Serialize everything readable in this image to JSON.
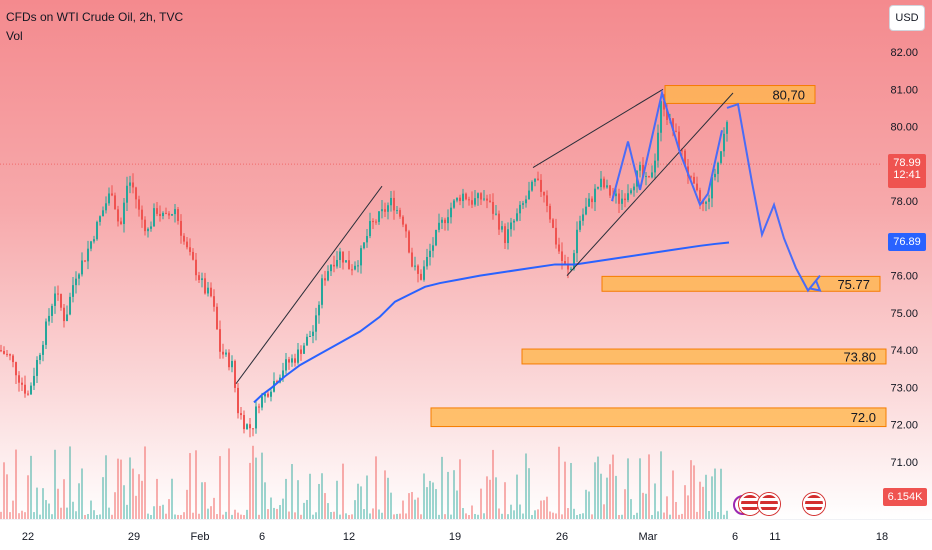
{
  "header": {
    "title": "CFDs on WTI Crude Oil, 2h, TVC",
    "indicator": "Vol",
    "currency_button": "USD"
  },
  "axis": {
    "y_ticks": [
      "82.00",
      "81.00",
      "80.00",
      "79.00",
      "78.00",
      "77.00",
      "76.00",
      "75.00",
      "74.00",
      "73.00",
      "72.00",
      "71.00"
    ],
    "x_ticks": [
      "22",
      "29",
      "Feb",
      "6",
      "12",
      "19",
      "26",
      "Mar",
      "6",
      "11",
      "18"
    ]
  },
  "price_tags": {
    "last_price": "78.99",
    "countdown": "12:41",
    "ma_value": "76.89",
    "volume": "6.154K"
  },
  "zones": [
    {
      "label": "80,70",
      "low": 80.62,
      "high": 81.1
    },
    {
      "label": "75.77",
      "low": 75.58,
      "high": 75.98
    },
    {
      "label": "73.80",
      "low": 73.63,
      "high": 74.03
    },
    {
      "label": "72.0",
      "low": 71.95,
      "high": 72.45
    }
  ],
  "colors": {
    "up": "#26a69a",
    "down": "#ef5350",
    "ma": "#2962ff",
    "projection": "#4a6cf7",
    "zone_fill": "#ffb74d",
    "zone_border": "#f57c00"
  },
  "event_icons": [
    "lightning-icon",
    "us-flag-icon",
    "us-flag-icon",
    "us-flag-icon"
  ],
  "chart_data": {
    "type": "candlestick",
    "title": "CFDs on WTI Crude Oil, 2h, TVC",
    "ylim": [
      70.5,
      82.5
    ],
    "price_path": [
      [
        0,
        74.0
      ],
      [
        10,
        73.8
      ],
      [
        20,
        73.2
      ],
      [
        28,
        72.8
      ],
      [
        35,
        73.5
      ],
      [
        45,
        74.5
      ],
      [
        55,
        75.6
      ],
      [
        65,
        74.8
      ],
      [
        75,
        76.0
      ],
      [
        85,
        76.5
      ],
      [
        95,
        77.2
      ],
      [
        105,
        77.9
      ],
      [
        112,
        78.3
      ],
      [
        120,
        77.2
      ],
      [
        128,
        78.6
      ],
      [
        134,
        78.3
      ],
      [
        140,
        77.6
      ],
      [
        148,
        77.2
      ],
      [
        156,
        77.8
      ],
      [
        165,
        77.5
      ],
      [
        175,
        77.8
      ],
      [
        185,
        76.8
      ],
      [
        195,
        76.2
      ],
      [
        205,
        75.6
      ],
      [
        212,
        75.4
      ],
      [
        220,
        74.0
      ],
      [
        226,
        73.8
      ],
      [
        232,
        73.6
      ],
      [
        238,
        72.4
      ],
      [
        245,
        72.0
      ],
      [
        252,
        71.9
      ],
      [
        258,
        72.6
      ],
      [
        265,
        72.8
      ],
      [
        275,
        73.2
      ],
      [
        285,
        73.6
      ],
      [
        295,
        73.8
      ],
      [
        305,
        74.2
      ],
      [
        315,
        74.6
      ],
      [
        322,
        75.8
      ],
      [
        330,
        76.3
      ],
      [
        340,
        76.6
      ],
      [
        350,
        76.2
      ],
      [
        360,
        76.5
      ],
      [
        370,
        77.3
      ],
      [
        380,
        77.6
      ],
      [
        392,
        78.0
      ],
      [
        405,
        77.4
      ],
      [
        412,
        76.3
      ],
      [
        420,
        75.9
      ],
      [
        428,
        76.5
      ],
      [
        438,
        77.2
      ],
      [
        450,
        77.8
      ],
      [
        462,
        78.2
      ],
      [
        472,
        78.0
      ],
      [
        485,
        78.1
      ],
      [
        496,
        77.6
      ],
      [
        505,
        77.0
      ],
      [
        515,
        77.5
      ],
      [
        525,
        78.0
      ],
      [
        535,
        78.5
      ],
      [
        545,
        78.2
      ],
      [
        555,
        77.0
      ],
      [
        562,
        76.4
      ],
      [
        570,
        76.0
      ],
      [
        578,
        77.4
      ],
      [
        590,
        78.0
      ],
      [
        600,
        78.5
      ],
      [
        610,
        78.2
      ],
      [
        620,
        78.0
      ],
      [
        630,
        78.4
      ],
      [
        640,
        78.8
      ],
      [
        648,
        78.4
      ],
      [
        655,
        79.2
      ],
      [
        662,
        80.8
      ],
      [
        668,
        80.2
      ],
      [
        675,
        79.8
      ],
      [
        685,
        79.0
      ],
      [
        692,
        78.4
      ],
      [
        700,
        78.0
      ],
      [
        705,
        77.8
      ],
      [
        712,
        78.5
      ],
      [
        720,
        79.2
      ],
      [
        727,
        80.2
      ],
      [
        731,
        78.9
      ]
    ],
    "moving_average": [
      [
        254,
        72.6
      ],
      [
        262,
        72.8
      ],
      [
        272,
        73.0
      ],
      [
        285,
        73.3
      ],
      [
        300,
        73.6
      ],
      [
        320,
        73.9
      ],
      [
        340,
        74.2
      ],
      [
        360,
        74.5
      ],
      [
        380,
        74.9
      ],
      [
        395,
        75.3
      ],
      [
        410,
        75.5
      ],
      [
        425,
        75.7
      ],
      [
        440,
        75.8
      ],
      [
        460,
        75.9
      ],
      [
        480,
        76.0
      ],
      [
        505,
        76.1
      ],
      [
        530,
        76.2
      ],
      [
        555,
        76.3
      ],
      [
        575,
        76.3
      ],
      [
        600,
        76.4
      ],
      [
        625,
        76.5
      ],
      [
        650,
        76.6
      ],
      [
        675,
        76.7
      ],
      [
        700,
        76.8
      ],
      [
        715,
        76.85
      ],
      [
        729,
        76.89
      ]
    ],
    "projection_path": [
      [
        727,
        80.5
      ],
      [
        738,
        80.6
      ],
      [
        752,
        78.5
      ],
      [
        762,
        77.1
      ],
      [
        774,
        77.9
      ],
      [
        784,
        77.0
      ],
      [
        796,
        76.2
      ],
      [
        808,
        75.6
      ],
      [
        820,
        76.0
      ]
    ],
    "pattern_lines": [
      {
        "from": [
          236,
          73.1
        ],
        "to": [
          382,
          78.4
        ]
      },
      {
        "from": [
          533,
          78.9
        ],
        "to": [
          663,
          81.0
        ]
      },
      {
        "from": [
          567,
          76.0
        ],
        "to": [
          733,
          80.9
        ]
      }
    ],
    "zigzag": [
      [
        612,
        78.0
      ],
      [
        628,
        79.6
      ],
      [
        640,
        78.3
      ],
      [
        662,
        80.9
      ],
      [
        680,
        79.3
      ],
      [
        700,
        77.9
      ],
      [
        708,
        78.2
      ],
      [
        722,
        79.9
      ]
    ]
  }
}
